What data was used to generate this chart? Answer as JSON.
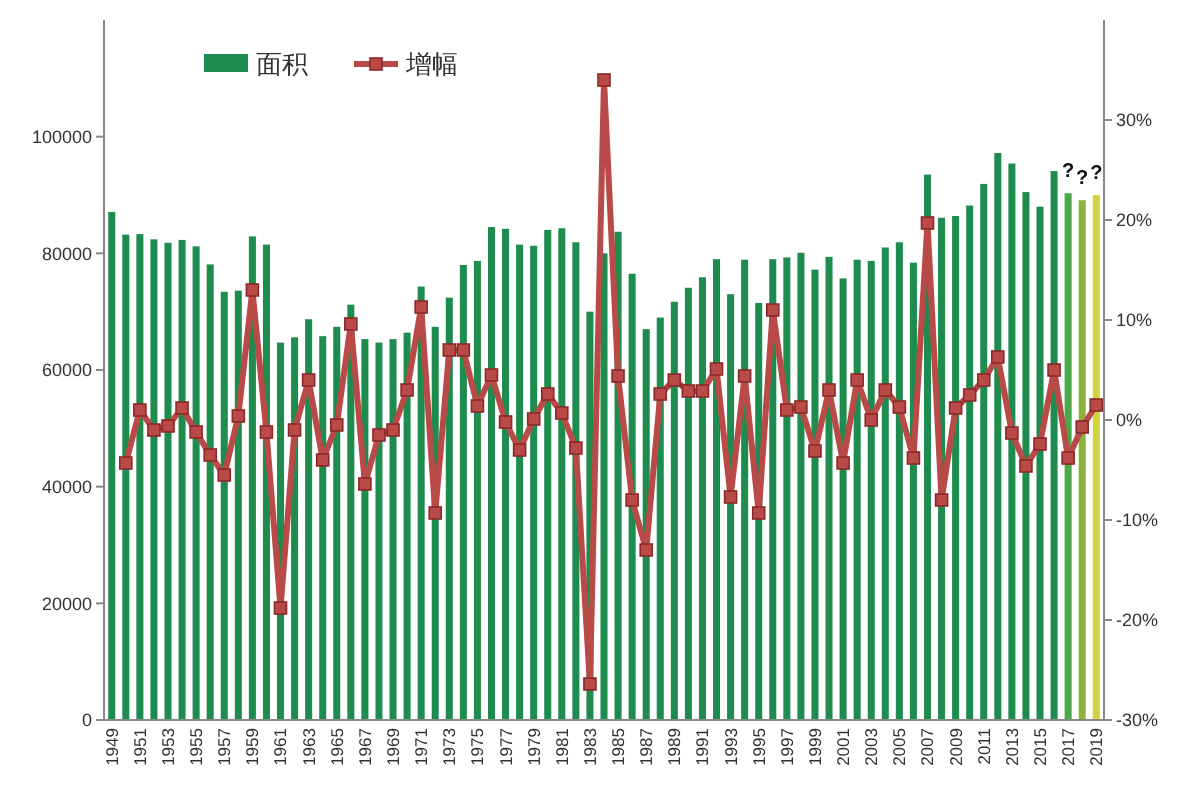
{
  "chart_data": {
    "type": "bar",
    "categories": [
      "1949",
      null,
      "1951",
      null,
      "1953",
      null,
      "1955",
      null,
      "1957",
      null,
      "1959",
      null,
      "1961",
      null,
      "1963",
      null,
      "1965",
      null,
      "1967",
      null,
      "1969",
      null,
      "1971",
      null,
      "1973",
      null,
      "1975",
      null,
      "1977",
      null,
      "1979",
      null,
      "1981",
      null,
      "1983",
      null,
      "1985",
      null,
      "1987",
      null,
      "1989",
      null,
      "1991",
      null,
      "1993",
      null,
      "1995",
      null,
      "1997",
      null,
      "1999",
      null,
      "2001",
      null,
      "2003",
      null,
      "2005",
      null,
      "2007",
      null,
      "2009",
      null,
      "2011",
      null,
      "2013",
      null,
      "2015",
      null,
      "2017",
      null,
      "2019"
    ],
    "series": [
      {
        "name": "面积",
        "color": "#1e8c4e",
        "colors": [
          "#1e8c4e",
          "#1e8c4e",
          "#1e8c4e",
          "#1e8c4e",
          "#1e8c4e",
          "#1e8c4e",
          "#1e8c4e",
          "#1e8c4e",
          "#1e8c4e",
          "#1e8c4e",
          "#1e8c4e",
          "#1e8c4e",
          "#1e8c4e",
          "#1e8c4e",
          "#1e8c4e",
          "#1e8c4e",
          "#1e8c4e",
          "#1e8c4e",
          "#1e8c4e",
          "#1e8c4e",
          "#1e8c4e",
          "#1e8c4e",
          "#1e8c4e",
          "#1e8c4e",
          "#1e8c4e",
          "#1e8c4e",
          "#1e8c4e",
          "#1e8c4e",
          "#1e8c4e",
          "#1e8c4e",
          "#1e8c4e",
          "#1e8c4e",
          "#1e8c4e",
          "#1e8c4e",
          "#1e8c4e",
          "#1e8c4e",
          "#1e8c4e",
          "#1e8c4e",
          "#1e8c4e",
          "#1e8c4e",
          "#1e8c4e",
          "#1e8c4e",
          "#1e8c4e",
          "#1e8c4e",
          "#1e8c4e",
          "#1e8c4e",
          "#1e8c4e",
          "#1e8c4e",
          "#1e8c4e",
          "#1e8c4e",
          "#1e8c4e",
          "#1e8c4e",
          "#1e8c4e",
          "#1e8c4e",
          "#1e8c4e",
          "#1e8c4e",
          "#1e8c4e",
          "#1e8c4e",
          "#1e8c4e",
          "#1e8c4e",
          "#1e8c4e",
          "#1e8c4e",
          "#1e8c4e",
          "#1e8c4e",
          "#1e8c4e",
          "#1e8c4e",
          "#1e8c4e",
          "#1e8c4e",
          "#4aa84a",
          "#8cb43c",
          "#d2d23c"
        ],
        "values": [
          87100,
          83200,
          83300,
          82400,
          81800,
          82300,
          81200,
          78100,
          73400,
          73600,
          82900,
          81500,
          64700,
          65600,
          68700,
          65800,
          67400,
          71200,
          65300,
          64700,
          65300,
          66400,
          74300,
          67400,
          72400,
          78000,
          78700,
          84500,
          84200,
          81500,
          81300,
          84000,
          84300,
          81900,
          70000,
          80000,
          83700,
          76500,
          67000,
          69000,
          71700,
          74100,
          75900,
          79000,
          73000,
          78900,
          71500,
          79000,
          79300,
          80100,
          77200,
          79400,
          75700,
          78900,
          78700,
          81000,
          81900,
          78400,
          93500,
          86100,
          86400,
          88200,
          91900,
          97200,
          95400,
          90500,
          88000,
          94100,
          90300,
          89100,
          90000
        ]
      },
      {
        "name": "增幅",
        "type": "line",
        "axis": "y2",
        "color": "#b94a48",
        "marker": "square",
        "values": [
          null,
          -4.3,
          1.0,
          -1.0,
          -0.6,
          1.2,
          -1.2,
          -3.5,
          -5.5,
          0.4,
          13.0,
          -1.2,
          -18.8,
          -1.0,
          4.0,
          -4.0,
          -0.5,
          9.6,
          -6.4,
          -1.5,
          -1.0,
          3.0,
          11.3,
          -9.3,
          7.0,
          7.0,
          1.4,
          4.5,
          -0.2,
          -3.0,
          0.1,
          2.6,
          0.7,
          -2.8,
          -26.4,
          34.0,
          4.4,
          -8.0,
          -13.0,
          2.6,
          4.0,
          2.9,
          2.9,
          5.1,
          -7.7,
          4.4,
          -9.3,
          11.0,
          1.0,
          1.3,
          -3.1,
          3.0,
          -4.3,
          4.0,
          0.0,
          3.0,
          1.3,
          -3.8,
          19.7,
          -8.0,
          1.2,
          2.5,
          4.0,
          6.3,
          -1.3,
          -4.6,
          -2.4,
          5.0,
          -3.8,
          -0.7,
          1.5
        ]
      }
    ],
    "ylim": [
      0,
      120000
    ],
    "yticks": [
      0,
      20000,
      40000,
      60000,
      80000,
      100000
    ],
    "y2lim": [
      -30,
      40
    ],
    "y2ticks": [
      {
        "value": -30,
        "label": "-30%"
      },
      {
        "value": -20,
        "label": "-20%"
      },
      {
        "value": -10,
        "label": "-10%"
      },
      {
        "value": 0,
        "label": "0%"
      },
      {
        "value": 10,
        "label": "10%"
      },
      {
        "value": 20,
        "label": "20%"
      },
      {
        "value": 30,
        "label": "30%"
      }
    ],
    "annotations": [
      {
        "text": "?",
        "x": "2017",
        "y": 90300
      },
      {
        "text": "?",
        "y": 89100
      },
      {
        "text": "?",
        "x": "2019",
        "y": 90000
      }
    ],
    "legend": "top left",
    "grid": false
  }
}
